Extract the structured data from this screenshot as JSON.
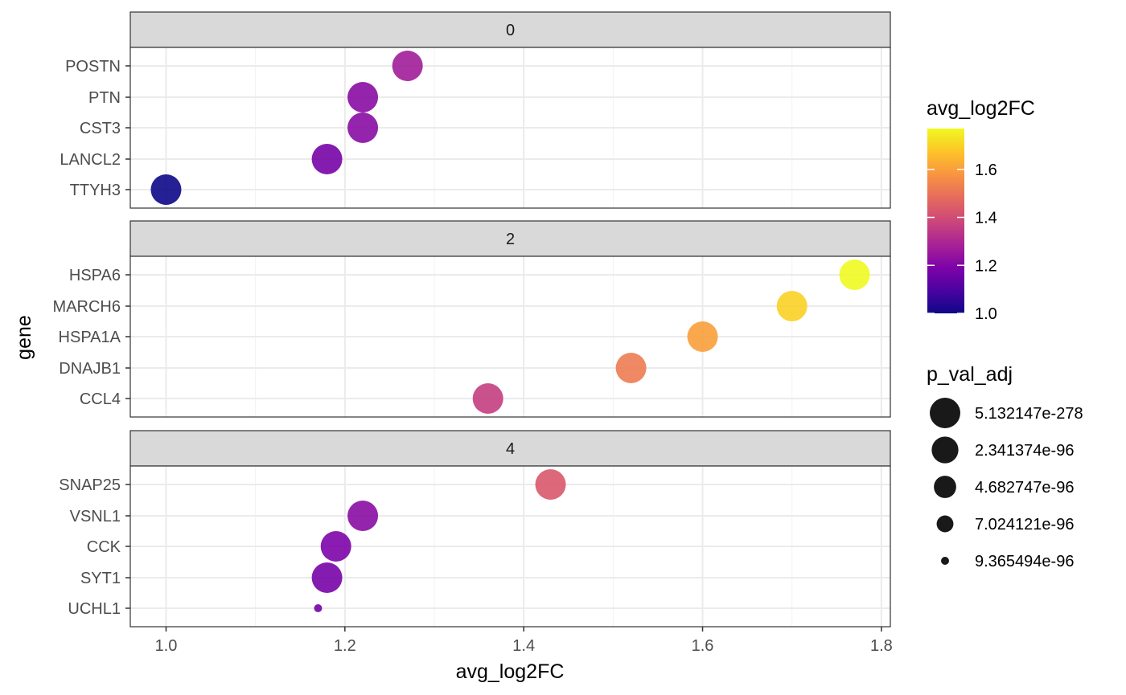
{
  "chart_data": {
    "type": "scatter",
    "xlabel": "avg_log2FC",
    "ylabel": "gene",
    "xlim": [
      0.96,
      1.81
    ],
    "x_ticks": [
      "1.0",
      "1.2",
      "1.4",
      "1.6",
      "1.8"
    ],
    "x_tick_values": [
      1.0,
      1.2,
      1.4,
      1.6,
      1.8
    ],
    "grid": true,
    "facets": [
      {
        "label": "0",
        "genes": [
          "POSTN",
          "PTN",
          "CST3",
          "LANCL2",
          "TTYH3"
        ],
        "avg_log2FC": [
          1.27,
          1.22,
          1.22,
          1.18,
          1.0
        ],
        "p_val_adj": [
          5.132147e-278,
          5.132147e-278,
          5.132147e-278,
          5.132147e-278,
          5.132147e-278
        ]
      },
      {
        "label": "2",
        "genes": [
          "HSPA6",
          "MARCH6",
          "HSPA1A",
          "DNAJB1",
          "CCL4"
        ],
        "avg_log2FC": [
          1.77,
          1.7,
          1.6,
          1.52,
          1.36
        ],
        "p_val_adj": [
          5.132147e-278,
          5.132147e-278,
          5.132147e-278,
          5.132147e-278,
          5.132147e-278
        ]
      },
      {
        "label": "4",
        "genes": [
          "SNAP25",
          "VSNL1",
          "CCK",
          "SYT1",
          "UCHL1"
        ],
        "avg_log2FC": [
          1.43,
          1.22,
          1.19,
          1.18,
          1.17
        ],
        "p_val_adj": [
          5.132147e-278,
          5.132147e-278,
          5.132147e-278,
          5.132147e-278,
          9.365494e-96
        ]
      }
    ],
    "color_legend": {
      "title": "avg_log2FC",
      "range": [
        1.0,
        1.77
      ],
      "tick_values": [
        1.0,
        1.2,
        1.4,
        1.6
      ],
      "tick_labels": [
        "1.0",
        "1.2",
        "1.4",
        "1.6"
      ],
      "palette": "plasma"
    },
    "size_legend": {
      "title": "p_val_adj",
      "labels": [
        "5.132147e-278",
        "2.341374e-96",
        "4.682747e-96",
        "7.024121e-96",
        "9.365494e-96"
      ],
      "values": [
        5.132147e-278,
        2.341374e-96,
        4.682747e-96,
        7.024121e-96,
        9.365494e-96
      ]
    }
  }
}
